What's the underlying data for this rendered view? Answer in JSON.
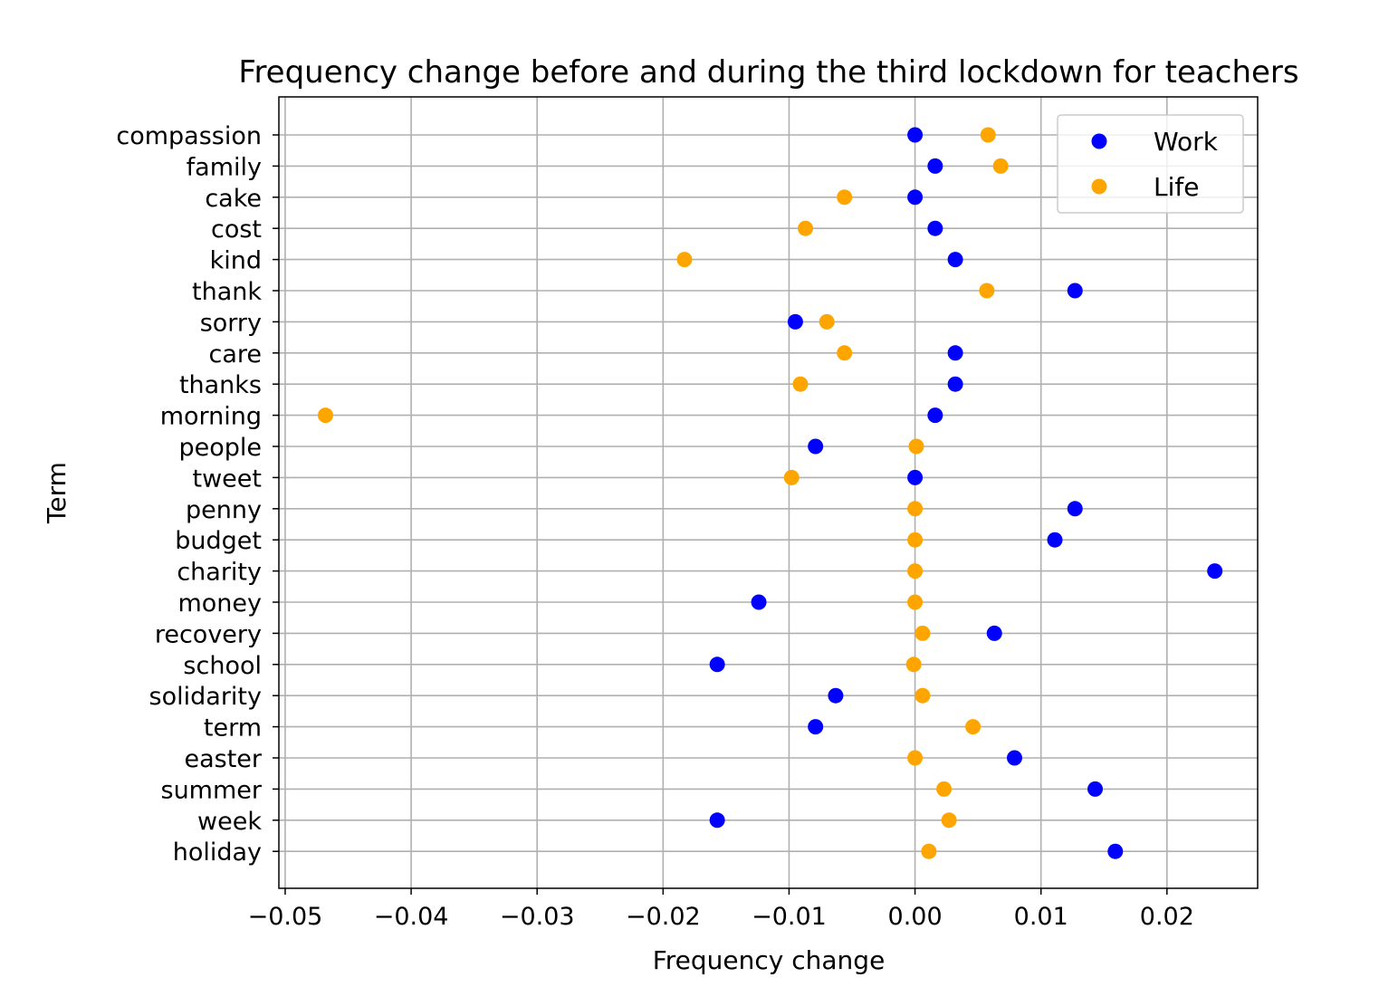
{
  "chart_data": {
    "type": "scatter",
    "title": "Frequency change before and during the third lockdown for teachers",
    "xlabel": "Frequency change",
    "ylabel": "Term",
    "xlim": [
      -0.0505,
      0.0272
    ],
    "xticks": [
      -0.05,
      -0.04,
      -0.03,
      -0.02,
      -0.01,
      0.0,
      0.01,
      0.02
    ],
    "xtick_labels": [
      "−0.05",
      "−0.04",
      "−0.03",
      "−0.02",
      "−0.01",
      "0.00",
      "0.01",
      "0.02"
    ],
    "grid": true,
    "legend_position": "top-right",
    "categories": [
      "compassion",
      "family",
      "cake",
      "cost",
      "kind",
      "thank",
      "sorry",
      "care",
      "thanks",
      "morning",
      "people",
      "tweet",
      "penny",
      "budget",
      "charity",
      "money",
      "recovery",
      "school",
      "solidarity",
      "term",
      "easter",
      "summer",
      "week",
      "holiday"
    ],
    "series": [
      {
        "name": "Work",
        "color": "#0000ff",
        "values": [
          0.0,
          0.0016,
          0.0,
          0.0016,
          0.0032,
          0.0127,
          -0.0095,
          0.0032,
          0.0032,
          0.0016,
          -0.0079,
          0.0,
          0.0127,
          0.0111,
          0.0238,
          -0.0124,
          0.0063,
          -0.0157,
          -0.0063,
          -0.0079,
          0.0079,
          0.0143,
          -0.0157,
          0.0159
        ]
      },
      {
        "name": "Life",
        "color": "#ffa500",
        "values": [
          0.0058,
          0.0068,
          -0.0056,
          -0.0087,
          -0.0183,
          0.0057,
          -0.007,
          -0.0056,
          -0.0091,
          -0.0468,
          0.0001,
          -0.0098,
          0.0,
          0.0,
          0.0,
          0.0,
          0.0006,
          -0.0001,
          0.0006,
          0.0046,
          0.0,
          0.0023,
          0.0027,
          0.0011
        ]
      }
    ]
  }
}
